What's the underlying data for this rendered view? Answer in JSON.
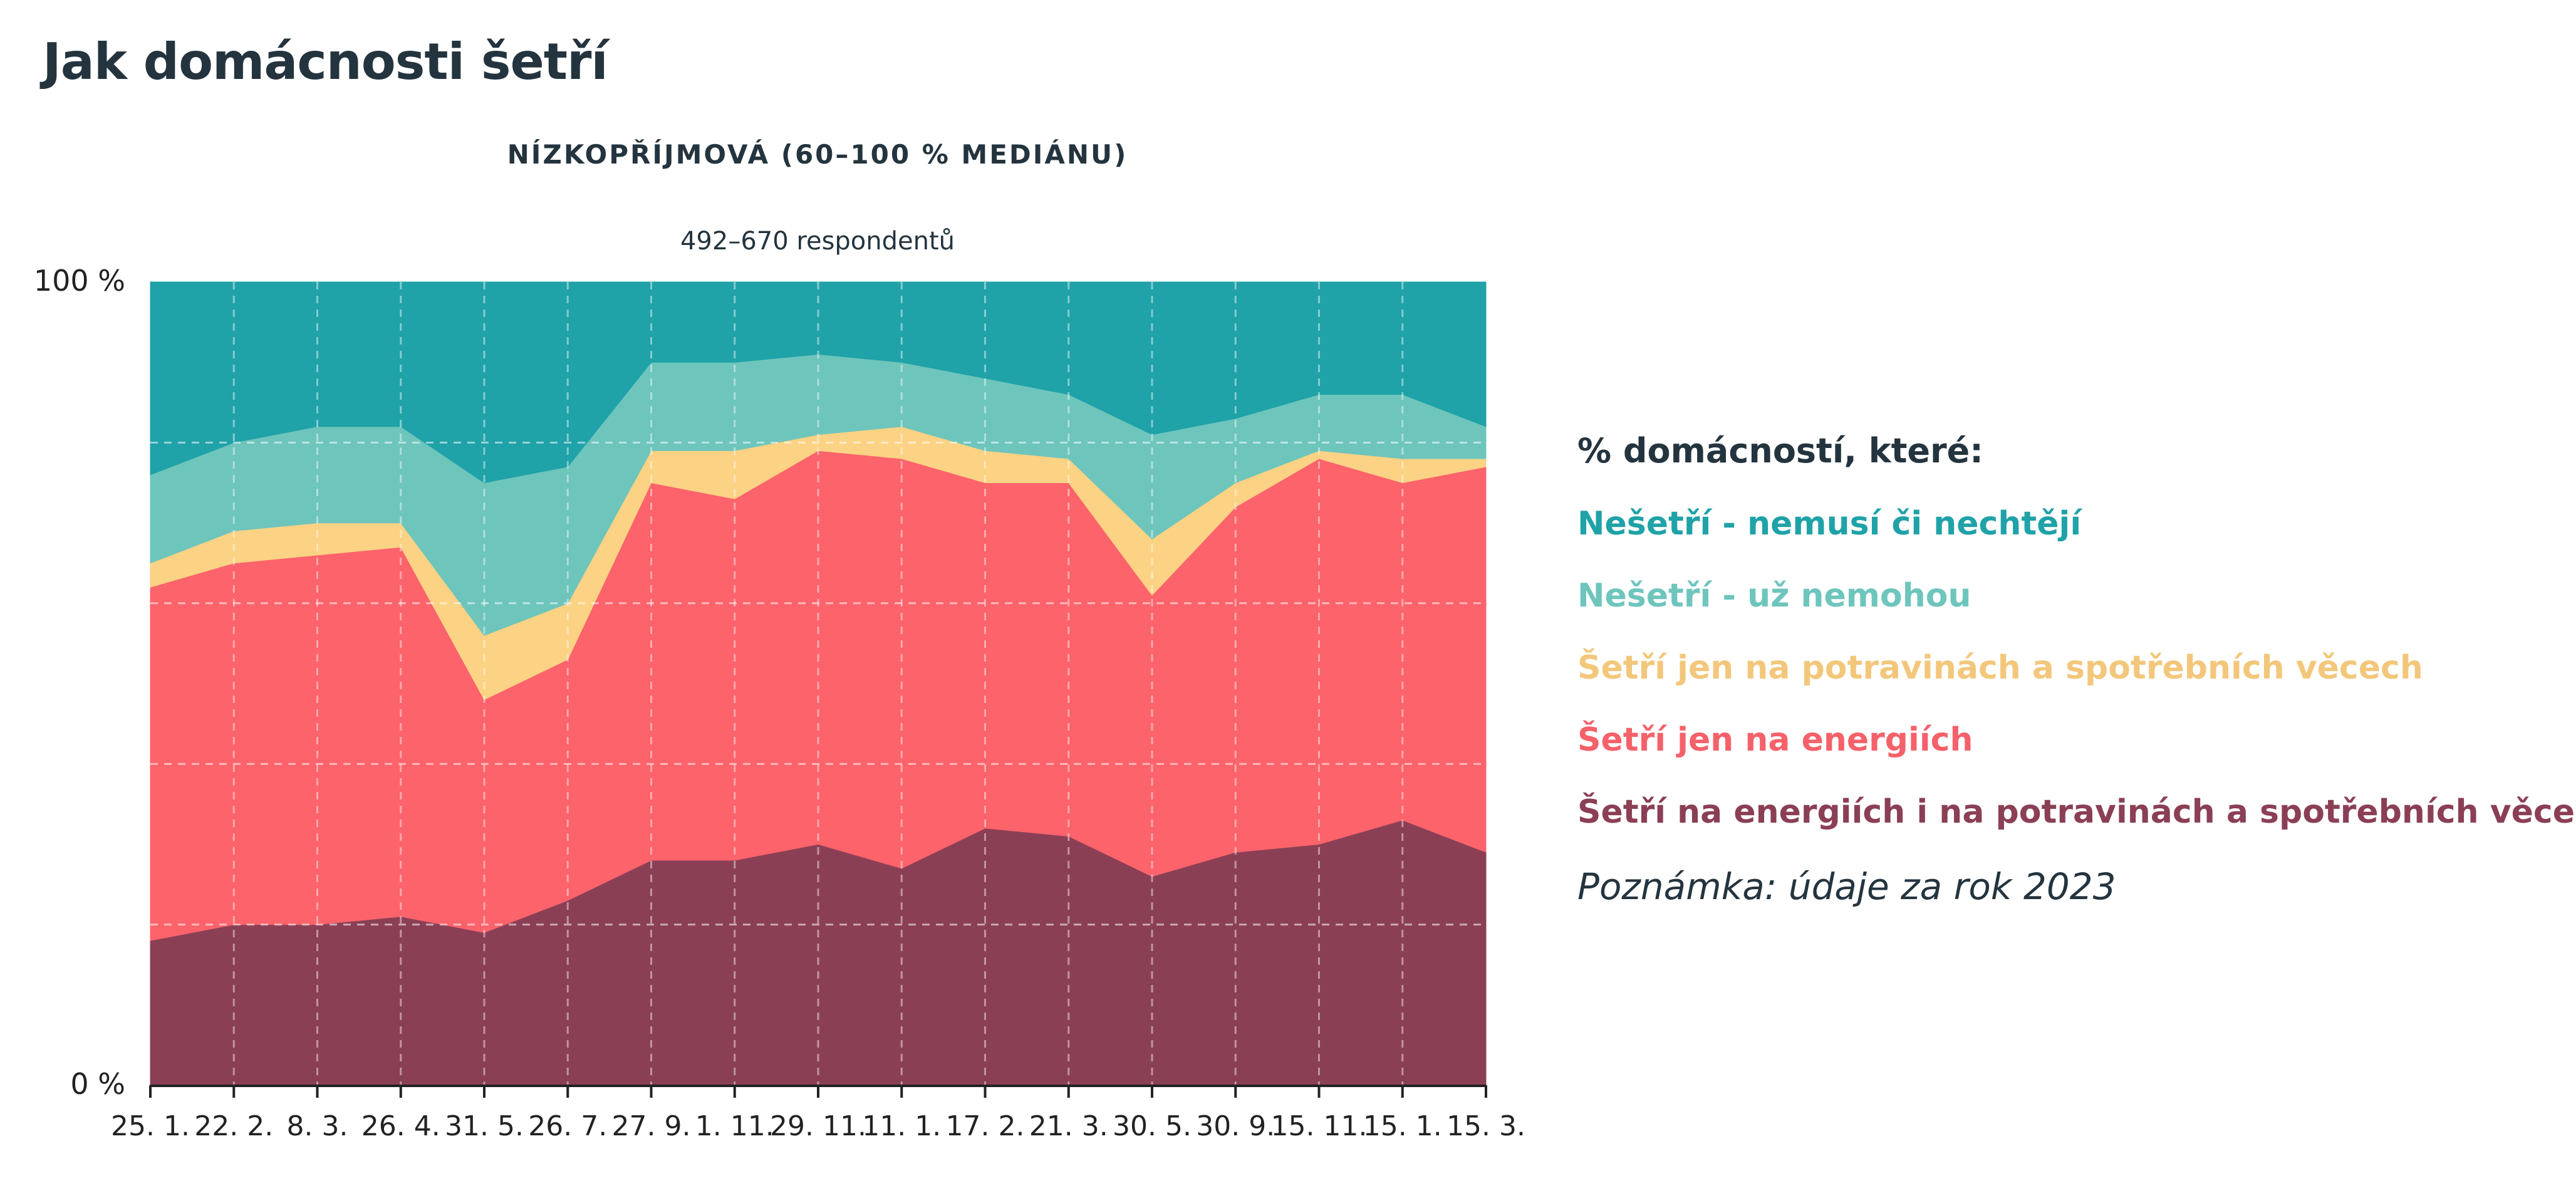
{
  "page": {
    "title": "Jak domácnosti šetří"
  },
  "chart_data": {
    "type": "area",
    "stacked": true,
    "title": "NÍZKOPŘÍJMOVÁ (60–100 % MEDIÁNU)",
    "subtitle": "492–670 respondentů",
    "y_tick_labels": [
      "100 %",
      "0 %"
    ],
    "ylim": [
      0,
      100
    ],
    "grid": true,
    "legend_position": "right",
    "x_tick_labels": [
      "25. 1.",
      "22. 2.",
      "8. 3.",
      "26. 4.",
      "31. 5.",
      "26. 7.",
      "27. 9.",
      "1. 11.",
      "29. 11.",
      "11. 1.",
      "17. 2.",
      "21. 3.",
      "30. 5.",
      "30. 9.",
      "15. 11.",
      "15. 1.",
      "15. 3."
    ],
    "series": [
      {
        "name": "Šetří na energiích i na potravinách a spotřebních věcech",
        "color": "#8b3f55",
        "values": [
          18,
          20,
          20,
          21,
          19,
          23,
          28,
          28,
          30,
          27,
          32,
          31,
          26,
          29,
          30,
          33,
          29
        ]
      },
      {
        "name": "Šetří jen na energiích",
        "color": "#fc636b",
        "values": [
          44,
          45,
          46,
          46,
          29,
          30,
          47,
          45,
          49,
          51,
          43,
          44,
          35,
          43,
          48,
          42,
          48
        ]
      },
      {
        "name": "Šetří jen na potravinách a spotřebních věcech",
        "color": "#fcd284",
        "values": [
          3,
          4,
          4,
          3,
          8,
          7,
          4,
          6,
          2,
          4,
          4,
          3,
          7,
          3,
          1,
          3,
          1
        ]
      },
      {
        "name": "Nešetří - už nemohou",
        "color": "#6ec5bc",
        "values": [
          11,
          11,
          12,
          12,
          19,
          17,
          11,
          11,
          10,
          8,
          9,
          8,
          13,
          8,
          7,
          8,
          4
        ]
      },
      {
        "name": "Nešetří - nemusí či nechtějí",
        "color": "#1fa2a8",
        "values": [
          24,
          20,
          18,
          18,
          25,
          23,
          10,
          10,
          9,
          10,
          12,
          14,
          19,
          17,
          14,
          14,
          18
        ]
      }
    ]
  },
  "legend": {
    "title": "% domácností, které:",
    "items": [
      {
        "label": "Nešetří - nemusí či nechtějí",
        "color": "#1fa2a8"
      },
      {
        "label": "Nešetří - už nemohou",
        "color": "#6ec5bc"
      },
      {
        "label": "Šetří jen na potravinách a spotřebních věcech",
        "color": "#f3c77b"
      },
      {
        "label": "Šetří jen na energiích",
        "color": "#f5616a"
      },
      {
        "label": "Šetří na energiích i na potravinách a spotřebních věcech",
        "color": "#8b3f55"
      }
    ],
    "note": "Poznámka: údaje za rok 2023"
  }
}
